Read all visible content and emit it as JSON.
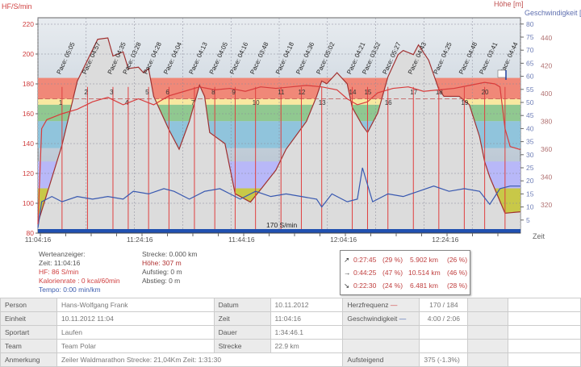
{
  "axes": {
    "hr_label": "HF/S/min",
    "alt_label": "Höhe [m]",
    "speed_label": "Geschwindigkeit [k",
    "time_label": "Zeit",
    "hr_ticks": [
      80,
      100,
      120,
      140,
      160,
      180,
      200,
      220
    ],
    "alt_ticks": [
      320,
      340,
      360,
      380,
      400,
      420,
      440
    ],
    "speed_ticks": [
      5,
      10,
      15,
      20,
      25,
      30,
      35,
      40,
      45,
      50,
      55,
      60,
      65,
      70,
      75,
      80
    ],
    "time_ticks": [
      "11:04:16",
      "11:24:16",
      "11:44:16",
      "12:04:16",
      "12:24:16"
    ]
  },
  "chart_data": {
    "type": "line",
    "x_start": "11:04:16",
    "x_end": "12:39:02",
    "hr_range": [
      80,
      220
    ],
    "alt_range": [
      296,
      452
    ],
    "speed_range": [
      0,
      80
    ],
    "hr_zones": [
      {
        "from": 170,
        "to": 184,
        "color": "#f08878"
      },
      {
        "from": 166,
        "to": 170,
        "color": "#f8e8a0"
      },
      {
        "from": 155,
        "to": 166,
        "color": "#90c890"
      },
      {
        "from": 137,
        "to": 155,
        "color": "#90c4dc"
      },
      {
        "from": 110,
        "to": 128,
        "color": "#b8b8f8"
      },
      {
        "from": 93,
        "to": 110,
        "color": "#c8c848"
      }
    ],
    "threshold": {
      "value": 170,
      "label": "170 S/min"
    },
    "altitude": {
      "time": [
        "11:04",
        "11:09",
        "11:12",
        "11:16",
        "11:18",
        "11:19",
        "11:21",
        "11:22",
        "11:24",
        "11:25",
        "11:26",
        "11:27",
        "11:30",
        "11:32",
        "11:34",
        "11:36",
        "11:37",
        "11:38",
        "11:41",
        "11:43",
        "11:46",
        "11:48",
        "11:51",
        "11:53",
        "11:57",
        "11:59",
        "12:00",
        "12:01",
        "12:03",
        "12:05",
        "12:06",
        "12:08",
        "12:09",
        "12:11",
        "12:13",
        "12:15",
        "12:16",
        "12:18",
        "12:19",
        "12:21",
        "12:23",
        "12:24",
        "12:27",
        "12:29",
        "12:31",
        "12:32",
        "12:33",
        "12:36",
        "12:39"
      ],
      "values": [
        307,
        363,
        409,
        439,
        440,
        427,
        430,
        418,
        419,
        415,
        418,
        398,
        374,
        360,
        380,
        406,
        398,
        372,
        364,
        328,
        322,
        331,
        345,
        360,
        380,
        398,
        409,
        407,
        415,
        407,
        390,
        377,
        372,
        386,
        412,
        428,
        431,
        428,
        435,
        424,
        403,
        398,
        398,
        392,
        369,
        351,
        340,
        314,
        315
      ]
    },
    "heart_rate": {
      "time": [
        "11:04",
        "11:05",
        "11:06",
        "11:09",
        "11:12",
        "11:15",
        "11:18",
        "11:21",
        "11:24",
        "11:27",
        "11:30",
        "11:33",
        "11:36",
        "11:39",
        "11:42",
        "11:45",
        "11:48",
        "11:51",
        "11:54",
        "11:57",
        "12:00",
        "12:03",
        "12:05",
        "12:07",
        "12:09",
        "12:11",
        "12:14",
        "12:17",
        "12:20",
        "12:23",
        "12:26",
        "12:29",
        "12:32",
        "12:34",
        "12:35",
        "12:36",
        "12:37",
        "12:39"
      ],
      "values": [
        86,
        150,
        156,
        160,
        163,
        168,
        171,
        166,
        170,
        166,
        172,
        175,
        178,
        176,
        177,
        175,
        178,
        177,
        178,
        179,
        178,
        176,
        170,
        166,
        168,
        174,
        177,
        178,
        175,
        176,
        177,
        179,
        181,
        180,
        178,
        150,
        138,
        136
      ]
    },
    "speed": {
      "time": [
        "11:04",
        "11:05",
        "11:07",
        "11:09",
        "11:12",
        "11:15",
        "11:18",
        "11:21",
        "11:23",
        "11:26",
        "11:29",
        "11:31",
        "11:34",
        "11:37",
        "11:40",
        "11:42",
        "11:44",
        "11:47",
        "11:50",
        "11:53",
        "11:56",
        "11:59",
        "12:00",
        "12:02",
        "12:05",
        "12:07",
        "12:08",
        "12:10",
        "12:13",
        "12:16",
        "12:19",
        "12:22",
        "12:25",
        "12:28",
        "12:31",
        "12:33",
        "12:35",
        "12:37",
        "12:39"
      ],
      "values": [
        2,
        12,
        14,
        12,
        14,
        13,
        14,
        13,
        16,
        15,
        17,
        16,
        13,
        16,
        17,
        15,
        13,
        16,
        14,
        15,
        14,
        13,
        10,
        15,
        12,
        13,
        25,
        12,
        15,
        14,
        16,
        18,
        16,
        17,
        16,
        11,
        17,
        18,
        18
      ]
    },
    "laps": [
      {
        "n": "1",
        "pace": "Pace: 05:05",
        "time": "11:09"
      },
      {
        "n": "2",
        "pace": "Pace: 04:57",
        "time": "11:14"
      },
      {
        "n": "3",
        "pace": "Pace: 04:35",
        "time": "11:19"
      },
      {
        "n": "4",
        "pace": "Pace: 03:28",
        "time": "11:22"
      },
      {
        "n": "5",
        "pace": "Pace: 04:28",
        "time": "11:26"
      },
      {
        "n": "6",
        "pace": "Pace: 04:04",
        "time": "11:30"
      },
      {
        "n": "7",
        "pace": "Pace: 04:13",
        "time": "11:35"
      },
      {
        "n": "8",
        "pace": "Pace: 04:05",
        "time": "11:39"
      },
      {
        "n": "9",
        "pace": "Pace: 04:16",
        "time": "11:43"
      },
      {
        "n": "10",
        "pace": "Pace: 03:48",
        "time": "11:47"
      },
      {
        "n": "11",
        "pace": "Pace: 04:18",
        "time": "11:52"
      },
      {
        "n": "12",
        "pace": "Pace: 04:36",
        "time": "11:56"
      },
      {
        "n": "13",
        "pace": "Pace: 05:02",
        "time": "12:00"
      },
      {
        "n": "14",
        "pace": "Pace: 04:21",
        "time": "12:06"
      },
      {
        "n": "15",
        "pace": "Pace: 03:52",
        "time": "12:09"
      },
      {
        "n": "16",
        "pace": "Pace: 05:27",
        "time": "12:13"
      },
      {
        "n": "17",
        "pace": "Pace: 04:43",
        "time": "12:18"
      },
      {
        "n": "18",
        "pace": "Pace: 04:25",
        "time": "12:23"
      },
      {
        "n": "19",
        "pace": "Pace: 04:48",
        "time": "12:28"
      },
      {
        "n": "20",
        "pace": "Pace: 03:41",
        "time": "12:32"
      },
      {
        "n": "",
        "pace": "Pace: 04:44",
        "time": "12:36"
      }
    ]
  },
  "colors": {
    "hr": "#d83c3c",
    "altitude": "#a03030",
    "speed": "#3858b0",
    "alt_fill": "#dcdcdc"
  },
  "readout": {
    "title": "Werteanzeiger:",
    "zeit": "Zeit: 11:04:16",
    "hf": "HF: 86 S/min",
    "kalorien": "Kalorienrate : 0 kcal/60min",
    "tempo": "Tempo: 0:00 min/km",
    "strecke": "Strecke: 0.000 km",
    "hoehe": "Höhe: 307 m",
    "aufstieg": "Aufstieg: 0 m",
    "abstieg": "Abstieg: 0 m"
  },
  "slope_summary": [
    {
      "icon": "↗",
      "time": "0:27:45",
      "tpct": "(29 %)",
      "dist": "5.902 km",
      "dpct": "(26 %)"
    },
    {
      "icon": "→",
      "time": "0:44:25",
      "tpct": "(47 %)",
      "dist": "10.514 km",
      "dpct": "(46 %)"
    },
    {
      "icon": "↘",
      "time": "0:22:30",
      "tpct": "(24 %)",
      "dist": "6.481 km",
      "dpct": "(28 %)"
    }
  ],
  "table": {
    "person_l": "Person",
    "person": "Hans-Wolfgang Frank",
    "datum_l": "Datum",
    "datum": "10.11.2012",
    "hf_l": "Herzfrequenz",
    "hf": "170 / 184",
    "einheit_l": "Einheit",
    "einheit": "10.11.2012 11:04",
    "zeit_l": "Zeit",
    "zeit": "11:04:16",
    "gs_l": "Geschwindigkeit",
    "gs": "4:00 / 2:06",
    "sportart_l": "Sportart",
    "sportart": "Laufen",
    "dauer_l": "Dauer",
    "dauer": "1:34:46.1",
    "team_l": "Team",
    "team": "Team Polar",
    "strecke_l": "Strecke",
    "strecke": "22.9 km",
    "anm_l": "Anmerkung",
    "anm": "Zeiler Waldmarathon  Strecke: 21,04Km  Zeit: 1:31:30",
    "auf_l": "Aufsteigend",
    "auf": "375 (-1.3%)"
  }
}
